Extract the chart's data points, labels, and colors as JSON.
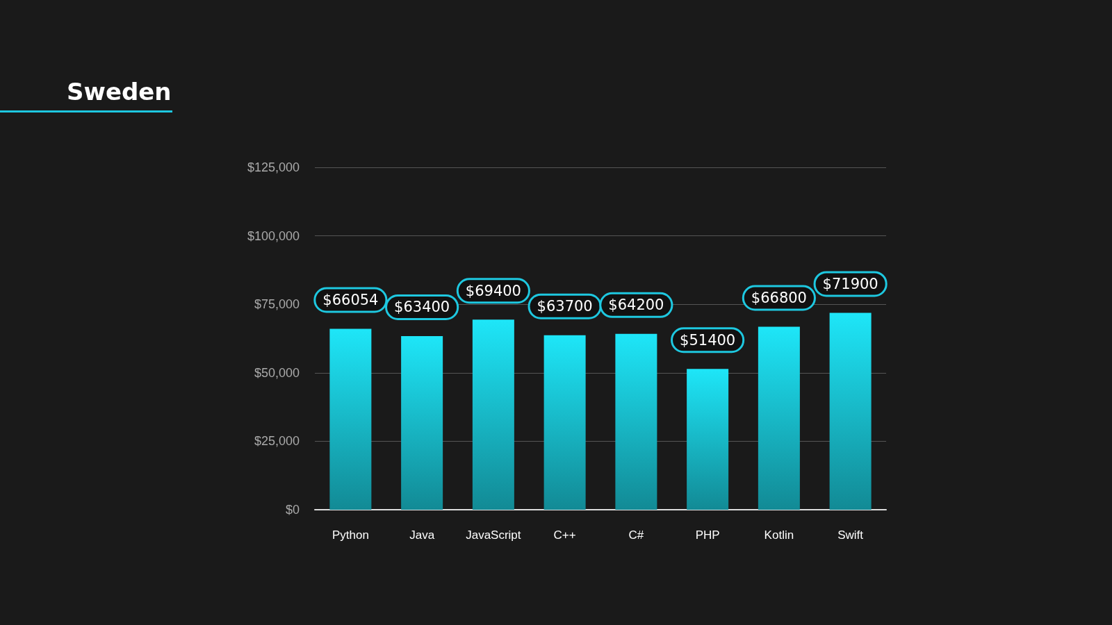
{
  "chart_data": {
    "type": "bar",
    "title": "Sweden",
    "categories": [
      "Python",
      "Java",
      "JavaScript",
      "C++",
      "C#",
      "PHP",
      "Kotlin",
      "Swift"
    ],
    "values": [
      66054,
      63400,
      69400,
      63700,
      64200,
      51400,
      66800,
      71900
    ],
    "color": "#1ee6f8",
    "ylim": [
      0,
      125000
    ],
    "yticks": [
      {
        "value": 0,
        "label": "$0"
      },
      {
        "value": 25000,
        "label": "$25,000"
      },
      {
        "value": 50000,
        "label": "$50,000"
      },
      {
        "value": 75000,
        "label": "$75,000"
      },
      {
        "value": 100000,
        "label": "$100,000"
      },
      {
        "value": 125000,
        "label": "$125,000"
      }
    ],
    "value_labels": [
      "$66054",
      "$63400",
      "$69400",
      "$63700",
      "$64200",
      "$51400",
      "$66800",
      "$71900"
    ],
    "grid": "y"
  }
}
